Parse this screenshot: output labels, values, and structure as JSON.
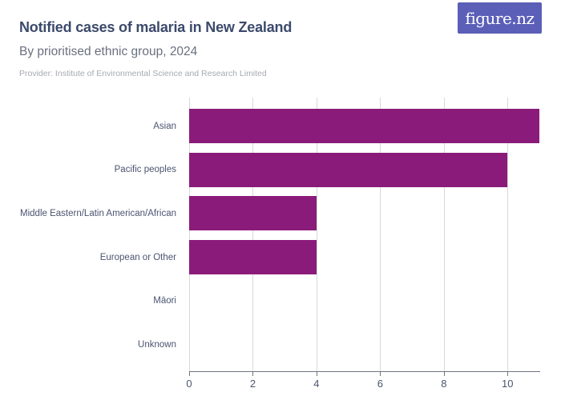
{
  "header": {
    "title": "Notified cases of malaria in New Zealand",
    "subtitle": "By prioritised ethnic group, 2024",
    "provider": "Provider: Institute of Environmental Science and Research Limited",
    "logo_text": "figure.nz"
  },
  "colors": {
    "bar": "#8b1b7a",
    "title": "#3b4a6b",
    "subtitle": "#6a7080",
    "provider": "#a6aab2",
    "axis_label": "#4b5471",
    "gridline": "#d9d9d9",
    "axis_line": "#70757f",
    "logo_bg": "#5b5fb7"
  },
  "chart_data": {
    "type": "bar",
    "orientation": "horizontal",
    "title": "Notified cases of malaria in New Zealand",
    "subtitle": "By prioritised ethnic group, 2024",
    "categories": [
      "Asian",
      "Pacific peoples",
      "Middle Eastern/Latin American/African",
      "European or Other",
      "Māori",
      "Unknown"
    ],
    "values": [
      11,
      10,
      4,
      4,
      0,
      0
    ],
    "xlabel": "",
    "ylabel": "",
    "xlim": [
      0,
      11
    ],
    "xticks": [
      0,
      2,
      4,
      6,
      8,
      10
    ],
    "grid": true,
    "legend": false,
    "bar_color": "#8b1b7a"
  }
}
